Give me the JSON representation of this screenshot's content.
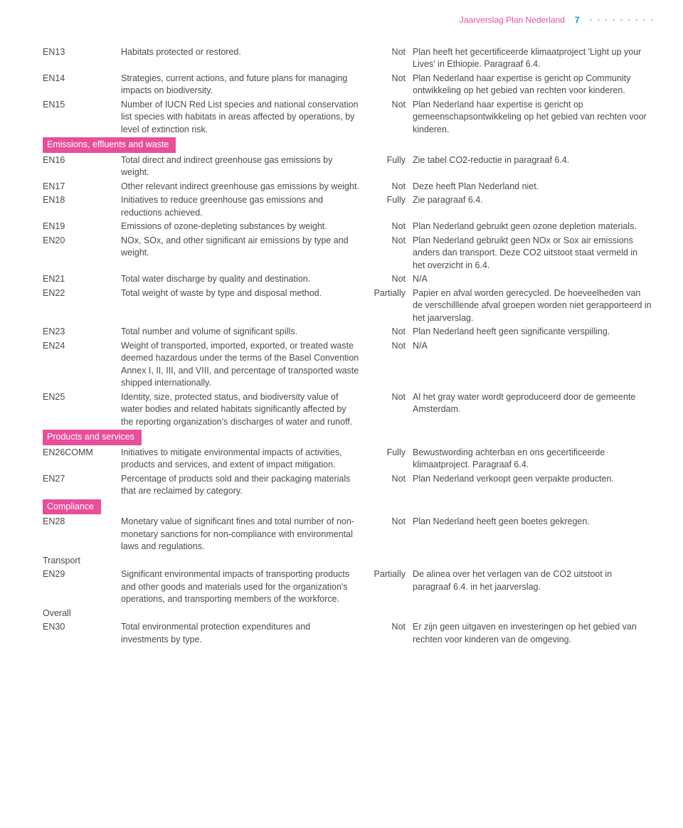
{
  "header": {
    "title": "Jaarverslag Plan Nederland",
    "page": "7",
    "dashes": "- - - - - - - - -"
  },
  "sections": [
    {
      "type": "rows",
      "rows": [
        {
          "code": "EN13",
          "desc": "Habitats protected or restored.",
          "status": "Not",
          "note": "Plan heeft het gecertificeerde klimaatproject 'Light up your Lives' in Ethiopie. Paragraaf 6.4."
        },
        {
          "code": "EN14",
          "desc": "Strategies, current actions, and future plans for managing impacts on biodiversity.",
          "status": "Not",
          "note": "Plan Nederland haar expertise is gericht op Community ontwikkeling op het gebied van rechten voor kinderen."
        },
        {
          "code": "EN15",
          "desc": "Number of IUCN Red List species and national conservation list species with habitats in areas affected by operations, by level of extinction risk.",
          "status": "Not",
          "note": "Plan Nederland haar expertise is gericht op gemeenschapsontwikkeling op het gebied van rechten voor kinderen."
        }
      ]
    },
    {
      "type": "band",
      "label": "Emissions, effluents and waste"
    },
    {
      "type": "rows",
      "rows": [
        {
          "code": "EN16",
          "desc": "Total direct and indirect greenhouse gas emissions by weight.",
          "status": "Fully",
          "note": "Zie tabel CO2-reductie in paragraaf 6.4."
        },
        {
          "code": "EN17",
          "desc": "Other relevant indirect greenhouse gas emissions by weight.",
          "status": "Not",
          "note": "Deze heeft Plan Nederland niet."
        },
        {
          "code": "EN18",
          "desc": "Initiatives to reduce greenhouse gas emissions and reductions achieved.",
          "status": "Fully",
          "note": "Zie paragraaf 6.4."
        },
        {
          "code": "EN19",
          "desc": "Emissions of ozone-depleting substances by weight.",
          "status": "Not",
          "note": "Plan Nederland gebruikt geen ozone depletion materials."
        },
        {
          "code": "EN20",
          "desc": "NOx, SOx, and other significant air emissions by type and weight.",
          "status": "Not",
          "note": "Plan Nederland gebruikt geen NOx or Sox air emissions anders dan transport. Deze CO2 uitstoot staat vermeld in het overzicht in 6.4."
        },
        {
          "code": "EN21",
          "desc": "Total water discharge by quality and destination.",
          "status": "Not",
          "note": "N/A"
        },
        {
          "code": "EN22",
          "desc": "Total weight of waste by type and disposal method.",
          "status": "Partially",
          "note": "Papier en afval worden gerecycled. De hoeveelheden van de verschilllende afval groepen worden niet gerapporteerd in het jaarverslag."
        },
        {
          "code": "EN23",
          "desc": "Total number and volume of significant spills.",
          "status": "Not",
          "note": "Plan Nederland heeft geen significante verspilling."
        },
        {
          "code": "EN24",
          "desc": "Weight of transported, imported, exported, or treated waste deemed hazardous under the terms of the Basel Convention Annex I, II, III, and VIII, and percentage of transported waste shipped internationally.",
          "status": "Not",
          "note": "N/A"
        },
        {
          "code": "EN25",
          "desc": "Identity, size, protected status, and biodiversity value of water bodies and related habitats significantly affected by the reporting organization's discharges of water and runoff.",
          "status": "Not",
          "note": "Al het gray water wordt geproduceerd door de gemeente Amsterdam."
        }
      ]
    },
    {
      "type": "band",
      "label": "Products and services"
    },
    {
      "type": "rows",
      "rows": [
        {
          "code": "EN26COMM",
          "desc": "Initiatives to mitigate environmental impacts of activities, products and services, and extent of impact mitigation.",
          "status": "Fully",
          "note": "Bewustwording achterban en ons gecertificeerde klimaatproject. Paragraaf 6.4."
        },
        {
          "code": "EN27",
          "desc": "Percentage of products sold and their packaging materials that are reclaimed by category.",
          "status": "Not",
          "note": "Plan Nederland verkoopt geen verpakte producten."
        }
      ]
    },
    {
      "type": "band",
      "label": "Compliance"
    },
    {
      "type": "rows",
      "rows": [
        {
          "code": "EN28",
          "desc": "Monetary value of significant fines and total number of non-monetary sanctions for non-compliance with environmental laws and regulations.",
          "status": "Not",
          "note": "Plan Nederland heeft geen boetes gekregen."
        }
      ]
    },
    {
      "type": "subhead",
      "label": "Transport"
    },
    {
      "type": "rows",
      "rows": [
        {
          "code": "EN29",
          "desc": "Significant environmental impacts of transporting products and other goods and materials used for the organization's operations, and transporting members of the workforce.",
          "status": "Partially",
          "note": "De alinea over het verlagen van de CO2 uitstoot in paragraaf 6.4. in het jaarverslag."
        }
      ]
    },
    {
      "type": "subhead",
      "label": "Overall"
    },
    {
      "type": "rows",
      "rows": [
        {
          "code": "EN30",
          "desc": "Total environmental protection expenditures and investments by type.",
          "status": "Not",
          "note": "Er zijn geen uitgaven en investeringen op het gebied van rechten voor kinderen van de omgeving."
        }
      ]
    }
  ]
}
